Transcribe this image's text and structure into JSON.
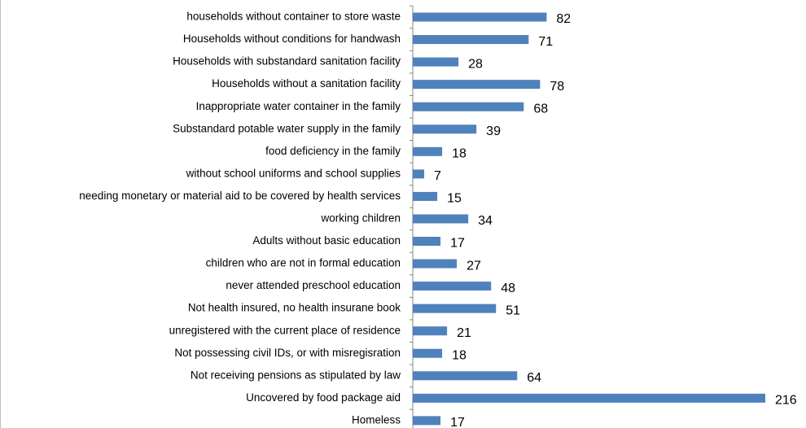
{
  "chart_data": {
    "type": "bar",
    "orientation": "horizontal",
    "color": "#4f81bd",
    "categories": [
      "households without container to store waste",
      "Households without conditions for handwash",
      "Households with substandard sanitation facility",
      "Households without a sanitation facility",
      "Inappropriate water container in the family",
      "Substandard potable water supply in the family",
      "food deficiency in the family",
      "without school uniforms and school supplies",
      "needing monetary or material aid to be covered by health services",
      "working children",
      "Adults without basic education",
      "children who are not in formal education",
      "never attended preschool education",
      "Not health insured, no health insurane book",
      "unregistered with the current place of residence",
      "Not possessing civil IDs, or with misregisration",
      "Not receiving pensions as stipulated by law",
      "Uncovered by food package aid",
      "Homeless"
    ],
    "values": [
      82,
      71,
      28,
      78,
      68,
      39,
      18,
      7,
      15,
      34,
      17,
      27,
      48,
      51,
      21,
      18,
      64,
      216,
      17
    ]
  }
}
